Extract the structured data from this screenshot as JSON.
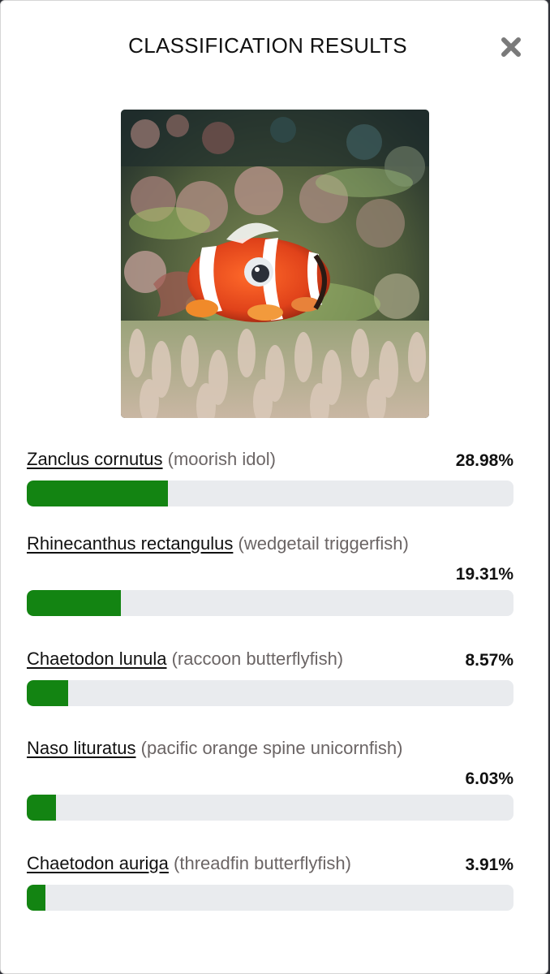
{
  "modal": {
    "title": "CLASSIFICATION RESULTS",
    "close_icon": "close-x-icon"
  },
  "image": {
    "subject": "clownfish-photo"
  },
  "results": [
    {
      "scientific_name": "Zanclus cornutus",
      "common_name": "(moorish idol)",
      "percent_label": "28.98%",
      "percent": 28.98
    },
    {
      "scientific_name": "Rhinecanthus rectangulus",
      "common_name": "(wedgetail triggerfish)",
      "percent_label": "19.31%",
      "percent": 19.31
    },
    {
      "scientific_name": "Chaetodon lunula",
      "common_name": "(raccoon butterflyfish)",
      "percent_label": "8.57%",
      "percent": 8.57
    },
    {
      "scientific_name": "Naso lituratus",
      "common_name": "(pacific orange spine unicornfish)",
      "percent_label": "6.03%",
      "percent": 6.03
    },
    {
      "scientific_name": "Chaetodon auriga",
      "common_name": "(threadfin butterflyfish)",
      "percent_label": "3.91%",
      "percent": 3.91
    }
  ],
  "colors": {
    "bar_fill": "#138412",
    "bar_track": "#e9ebee",
    "common_name": "#6b6565"
  }
}
